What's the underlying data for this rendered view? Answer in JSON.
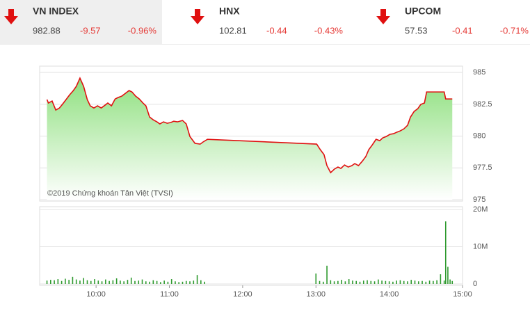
{
  "header": {
    "indices": [
      {
        "name": "VN INDEX",
        "value": "982.88",
        "change": "-9.57",
        "pct": "-0.96%"
      },
      {
        "name": "HNX",
        "value": "102.81",
        "change": "-0.44",
        "pct": "-0.43%"
      },
      {
        "name": "UPCOM",
        "value": "57.53",
        "change": "-0.41",
        "pct": "-0.71%"
      }
    ]
  },
  "chart_data": [
    {
      "type": "area",
      "annotation": "©2019 Chứng khoán Tân Việt (TVSI)",
      "color": "#e01010",
      "fill": "#8fe07f",
      "x": [
        9.33,
        9.35,
        9.4,
        9.45,
        9.5,
        9.54,
        9.59,
        9.64,
        9.69,
        9.73,
        9.78,
        9.83,
        9.88,
        9.92,
        9.97,
        10.02,
        10.07,
        10.11,
        10.16,
        10.21,
        10.26,
        10.3,
        10.35,
        10.4,
        10.45,
        10.49,
        10.54,
        10.59,
        10.64,
        10.68,
        10.73,
        10.78,
        10.83,
        10.87,
        10.92,
        10.97,
        11.02,
        11.06,
        11.11,
        11.18,
        11.23,
        11.28,
        11.35,
        11.42,
        11.46,
        11.52,
        13.01,
        13.06,
        13.11,
        13.15,
        13.2,
        13.25,
        13.3,
        13.34,
        13.39,
        13.44,
        13.49,
        13.53,
        13.58,
        13.63,
        13.68,
        13.72,
        13.77,
        13.82,
        13.87,
        13.91,
        13.96,
        14.01,
        14.06,
        14.1,
        14.15,
        14.2,
        14.25,
        14.29,
        14.34,
        14.39,
        14.43,
        14.48,
        14.51,
        14.75,
        14.77,
        14.86
      ],
      "values": [
        982.87,
        982.6,
        982.76,
        982.05,
        982.21,
        982.49,
        982.87,
        983.25,
        983.58,
        983.91,
        984.56,
        983.91,
        982.87,
        982.38,
        982.21,
        982.38,
        982.21,
        982.38,
        982.6,
        982.38,
        982.92,
        983.03,
        983.14,
        983.36,
        983.58,
        983.47,
        983.14,
        982.92,
        982.6,
        982.38,
        981.5,
        981.28,
        981.12,
        980.96,
        981.12,
        981.01,
        981.07,
        981.17,
        981.12,
        981.23,
        980.96,
        979.97,
        979.43,
        979.37,
        979.54,
        979.75,
        979.37,
        978.93,
        978.55,
        977.68,
        977.13,
        977.4,
        977.57,
        977.46,
        977.73,
        977.57,
        977.68,
        977.84,
        977.68,
        978.01,
        978.39,
        978.93,
        979.32,
        979.75,
        979.64,
        979.86,
        979.97,
        980.14,
        980.19,
        980.3,
        980.41,
        980.57,
        980.85,
        981.5,
        981.94,
        982.16,
        982.49,
        982.6,
        983.47,
        983.47,
        982.92,
        982.92
      ],
      "xlim": [
        9.23,
        15
      ],
      "ylim": [
        975,
        985.5
      ],
      "yticks": [
        975,
        977.5,
        980,
        982.5,
        985
      ],
      "grid": true
    },
    {
      "type": "bar",
      "color": "#2e9a2e",
      "x": [
        9.33,
        9.38,
        9.43,
        9.48,
        9.53,
        9.58,
        9.63,
        9.68,
        9.73,
        9.78,
        9.83,
        9.88,
        9.93,
        9.98,
        10.03,
        10.08,
        10.13,
        10.18,
        10.23,
        10.28,
        10.33,
        10.38,
        10.43,
        10.48,
        10.53,
        10.58,
        10.63,
        10.68,
        10.73,
        10.78,
        10.83,
        10.88,
        10.93,
        10.98,
        11.03,
        11.08,
        11.13,
        11.18,
        11.23,
        11.28,
        11.33,
        11.38,
        11.43,
        11.48,
        13.0,
        13.05,
        13.1,
        13.15,
        13.2,
        13.25,
        13.3,
        13.35,
        13.4,
        13.45,
        13.5,
        13.55,
        13.6,
        13.65,
        13.7,
        13.75,
        13.8,
        13.85,
        13.9,
        13.95,
        14.0,
        14.05,
        14.1,
        14.15,
        14.2,
        14.25,
        14.3,
        14.35,
        14.4,
        14.45,
        14.5,
        14.55,
        14.6,
        14.65,
        14.7,
        14.75,
        14.77,
        14.8,
        14.83,
        14.86
      ],
      "values": [
        900000,
        1100000,
        1000000,
        1300000,
        800000,
        1400000,
        1100000,
        1900000,
        1200000,
        900000,
        1600000,
        1000000,
        800000,
        1300000,
        900000,
        700000,
        1200000,
        800000,
        1000000,
        1500000,
        900000,
        700000,
        1100000,
        1700000,
        800000,
        900000,
        1200000,
        700000,
        600000,
        1000000,
        800000,
        500000,
        900000,
        600000,
        1300000,
        700000,
        500000,
        600000,
        800000,
        700000,
        900000,
        2400000,
        1000000,
        600000,
        2800000,
        800000,
        600000,
        4900000,
        1000000,
        700000,
        800000,
        1100000,
        700000,
        1300000,
        900000,
        800000,
        600000,
        900000,
        1000000,
        800000,
        700000,
        1200000,
        900000,
        800000,
        700000,
        600000,
        900000,
        1000000,
        800000,
        700000,
        1100000,
        900000,
        700000,
        800000,
        600000,
        900000,
        800000,
        1000000,
        2600000,
        900000,
        16800000,
        4600000,
        1200000,
        800000
      ],
      "xlim": [
        9.23,
        15
      ],
      "ylim": [
        0,
        20000000
      ],
      "yticks": [
        0,
        {
          "value": 10000000,
          "label": "10M"
        },
        {
          "value": 20000000,
          "label": "20M"
        }
      ],
      "xticks": [
        {
          "value": 10,
          "label": "10:00"
        },
        {
          "value": 11,
          "label": "11:00"
        },
        {
          "value": 12,
          "label": "12:00"
        },
        {
          "value": 13,
          "label": "13:00"
        },
        {
          "value": 14,
          "label": "14:00"
        },
        {
          "value": 15,
          "label": "15:00"
        }
      ],
      "grid": true
    }
  ]
}
